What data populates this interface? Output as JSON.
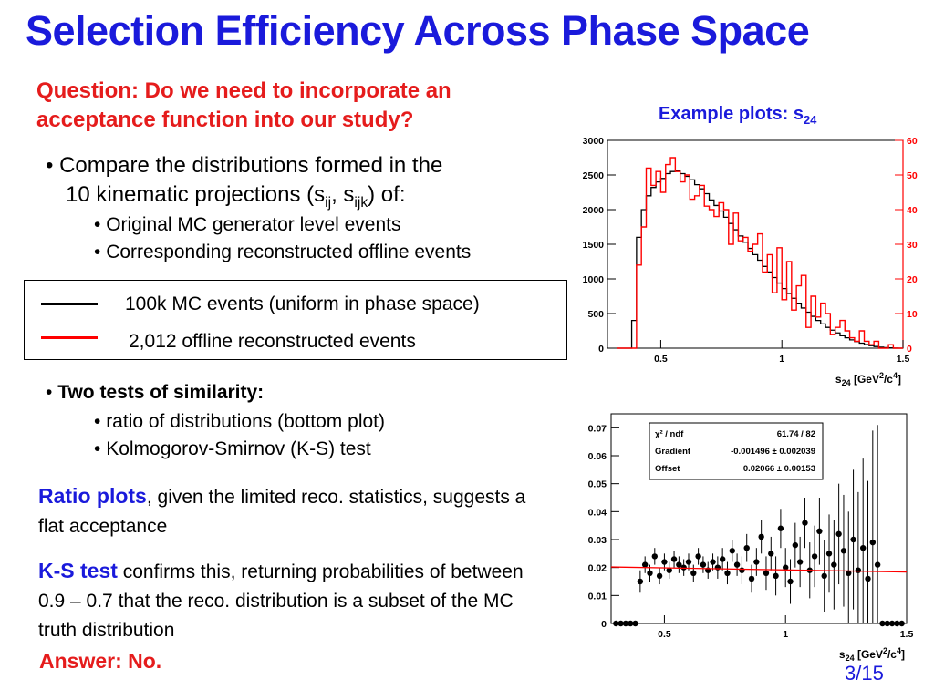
{
  "title": "Selection Efficiency Across Phase Space",
  "question": "Question: Do we need to incorporate an acceptance function into our study?",
  "compare": {
    "line1": "Compare the distributions formed in the",
    "line2_pre": "10 kinematic projections (s",
    "sub_ij": "ij",
    "comma": ", s",
    "sub_ijk": "ijk",
    "line2_post": ") of:",
    "sub_items": [
      "Original MC generator level events",
      "Corresponding reconstructed offline events"
    ]
  },
  "legend": {
    "items": [
      {
        "label": "100k MC events (uniform in phase space)",
        "color": "#000000"
      },
      {
        "label": "2,012 offline reconstructed events",
        "color": "#ff0000"
      }
    ]
  },
  "tests": {
    "heading": "Two tests of similarity:",
    "items": [
      "ratio of distributions (bottom plot)",
      "Kolmogorov-Smirnov (K-S) test"
    ]
  },
  "ratio_text": {
    "lead": "Ratio plots",
    "rest": ", given the limited reco. statistics, suggests a flat acceptance"
  },
  "ks_text": {
    "lead": "K-S test",
    "rest": " confirms this, returning probabilities of between 0.9 – 0.7 that the reco. distribution is a subset of the MC truth distribution"
  },
  "answer": "Answer: No.",
  "page": "3/15",
  "example_label": {
    "pre": "Example plots: s",
    "sub": "24"
  },
  "colors": {
    "title_blue": "#1a1adb",
    "red": "#e51c1c",
    "mc": "#000000",
    "reco": "#ff0000"
  },
  "chart_data": [
    {
      "type": "line",
      "xlabel": "s24 [GeV2/c4]",
      "xticks": [
        "0.5",
        "1",
        "1.5"
      ],
      "xlim": [
        0.28,
        1.5
      ],
      "ylim_left": [
        0,
        3000
      ],
      "yticks_left": [
        "0",
        "500",
        "1000",
        "1500",
        "2000",
        "2500",
        "3000"
      ],
      "ylim_right": [
        0,
        60
      ],
      "yticks_right": [
        "0",
        "10",
        "20",
        "30",
        "40",
        "50",
        "60"
      ],
      "series": [
        {
          "color": "#000000",
          "x": [
            0.33,
            0.35,
            0.37,
            0.39,
            0.41,
            0.43,
            0.45,
            0.47,
            0.49,
            0.51,
            0.53,
            0.55,
            0.57,
            0.59,
            0.61,
            0.63,
            0.65,
            0.67,
            0.69,
            0.71,
            0.73,
            0.75,
            0.77,
            0.79,
            0.81,
            0.83,
            0.85,
            0.87,
            0.89,
            0.91,
            0.93,
            0.95,
            0.97,
            0.99,
            1.01,
            1.03,
            1.05,
            1.07,
            1.09,
            1.11,
            1.13,
            1.15,
            1.17,
            1.19,
            1.21,
            1.23,
            1.25,
            1.27,
            1.29,
            1.31,
            1.33,
            1.35,
            1.37,
            1.39,
            1.41,
            1.43,
            1.45,
            1.47,
            1.49
          ],
          "values": [
            0,
            0,
            0,
            400,
            1600,
            2000,
            2200,
            2320,
            2400,
            2450,
            2520,
            2550,
            2560,
            2520,
            2480,
            2430,
            2360,
            2300,
            2230,
            2140,
            2060,
            1980,
            1890,
            1800,
            1710,
            1620,
            1530,
            1440,
            1350,
            1270,
            1180,
            1100,
            1020,
            940,
            860,
            790,
            720,
            650,
            580,
            520,
            460,
            400,
            350,
            300,
            260,
            220,
            180,
            150,
            120,
            95,
            72,
            52,
            36,
            24,
            14,
            8,
            4,
            1,
            0
          ]
        },
        {
          "color": "#ff0000",
          "x": [
            0.33,
            0.35,
            0.37,
            0.39,
            0.41,
            0.43,
            0.45,
            0.47,
            0.49,
            0.51,
            0.53,
            0.55,
            0.57,
            0.59,
            0.61,
            0.63,
            0.65,
            0.67,
            0.69,
            0.71,
            0.73,
            0.75,
            0.77,
            0.79,
            0.81,
            0.83,
            0.85,
            0.87,
            0.89,
            0.91,
            0.93,
            0.95,
            0.97,
            0.99,
            1.01,
            1.03,
            1.05,
            1.07,
            1.09,
            1.11,
            1.13,
            1.15,
            1.17,
            1.19,
            1.21,
            1.23,
            1.25,
            1.27,
            1.29,
            1.31,
            1.33,
            1.35,
            1.37,
            1.39,
            1.41,
            1.43,
            1.45,
            1.47,
            1.49
          ],
          "values": [
            0,
            0,
            0,
            0,
            24,
            35,
            52,
            47,
            51,
            45,
            53,
            55,
            51,
            48,
            50,
            43,
            44,
            47,
            41,
            40,
            38,
            42,
            40,
            30,
            39,
            31,
            32,
            28,
            30,
            33,
            22,
            27,
            16,
            29,
            14,
            25,
            11,
            18,
            21,
            6,
            15,
            9,
            13,
            10,
            4,
            6,
            8,
            5,
            3,
            2,
            5,
            2,
            1,
            2,
            0,
            0,
            1,
            0,
            0
          ]
        }
      ]
    },
    {
      "type": "scatter",
      "xticks": [
        "0.5",
        "1",
        "1.5"
      ],
      "xlabel": "s24 [GeV2/c4]",
      "xlim": [
        0.28,
        1.5
      ],
      "ylim": [
        0,
        0.075
      ],
      "yticks": [
        "0",
        "0.01",
        "0.02",
        "0.03",
        "0.04",
        "0.05",
        "0.06",
        "0.07"
      ],
      "stats": [
        {
          "label": "χ² / ndf",
          "value": "61.74 / 82"
        },
        {
          "label": "Gradient",
          "value": "-0.001496 ± 0.002039"
        },
        {
          "label": "Offset",
          "value": "0.02066 ± 0.00153"
        }
      ],
      "fit_line": {
        "x": [
          0.28,
          1.5
        ],
        "y": [
          0.0202,
          0.0184
        ],
        "color": "#ff0000"
      },
      "points": {
        "x": [
          0.3,
          0.32,
          0.34,
          0.36,
          0.38,
          0.4,
          0.42,
          0.44,
          0.46,
          0.48,
          0.5,
          0.52,
          0.54,
          0.56,
          0.58,
          0.6,
          0.62,
          0.64,
          0.66,
          0.68,
          0.7,
          0.72,
          0.74,
          0.76,
          0.78,
          0.8,
          0.82,
          0.84,
          0.86,
          0.88,
          0.9,
          0.92,
          0.94,
          0.96,
          0.98,
          1.0,
          1.02,
          1.04,
          1.06,
          1.08,
          1.1,
          1.12,
          1.14,
          1.16,
          1.18,
          1.2,
          1.22,
          1.24,
          1.26,
          1.28,
          1.3,
          1.32,
          1.34,
          1.36,
          1.38,
          1.4,
          1.42,
          1.44,
          1.46,
          1.48
        ],
        "y": [
          0,
          0,
          0,
          0,
          0,
          0.015,
          0.021,
          0.018,
          0.024,
          0.017,
          0.022,
          0.019,
          0.023,
          0.021,
          0.02,
          0.022,
          0.018,
          0.024,
          0.021,
          0.019,
          0.022,
          0.02,
          0.023,
          0.018,
          0.026,
          0.021,
          0.019,
          0.027,
          0.016,
          0.022,
          0.031,
          0.018,
          0.025,
          0.017,
          0.034,
          0.02,
          0.015,
          0.028,
          0.022,
          0.036,
          0.019,
          0.024,
          0.033,
          0.017,
          0.025,
          0.021,
          0.032,
          0.026,
          0.018,
          0.03,
          0.019,
          0.027,
          0.016,
          0.029,
          0.021,
          0,
          0,
          0,
          0,
          0
        ],
        "err": [
          0,
          0,
          0,
          0,
          0,
          0.004,
          0.003,
          0.003,
          0.003,
          0.003,
          0.003,
          0.003,
          0.003,
          0.003,
          0.003,
          0.003,
          0.003,
          0.003,
          0.003,
          0.003,
          0.003,
          0.004,
          0.004,
          0.004,
          0.004,
          0.004,
          0.005,
          0.005,
          0.005,
          0.005,
          0.006,
          0.006,
          0.006,
          0.007,
          0.007,
          0.007,
          0.008,
          0.008,
          0.009,
          0.009,
          0.01,
          0.011,
          0.012,
          0.013,
          0.014,
          0.016,
          0.018,
          0.02,
          0.022,
          0.025,
          0.028,
          0.032,
          0.035,
          0.04,
          0.05,
          0,
          0,
          0,
          0,
          0
        ]
      }
    }
  ]
}
